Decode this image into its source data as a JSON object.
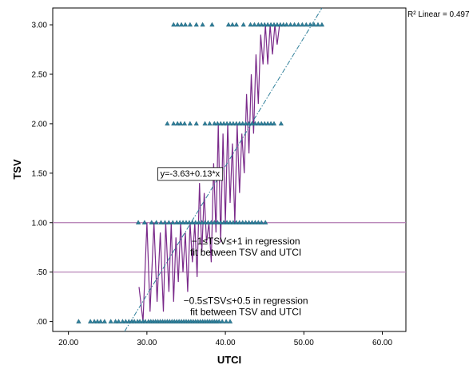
{
  "chart_data": {
    "type": "scatter",
    "xlabel": "UTCI",
    "ylabel": "TSV",
    "xlim": [
      18,
      63
    ],
    "ylim": [
      -0.1,
      3.17
    ],
    "x_ticks": [
      20,
      30,
      40,
      50,
      60
    ],
    "x_tick_labels": [
      "20.00",
      "30.00",
      "40.00",
      "50.00",
      "60.00"
    ],
    "y_ticks": [
      0,
      0.5,
      1,
      1.5,
      2,
      2.5,
      3
    ],
    "y_tick_labels": [
      ".00",
      ".50",
      "1.00",
      "1.50",
      "2.00",
      "2.50",
      "3.00"
    ],
    "r2_label": "R² Linear = 0.497",
    "equation_label": "y=-3.63+0.13*x",
    "equation_anchor": {
      "x": 35.5,
      "y": 1.5
    },
    "fit_line": {
      "intercept": -3.63,
      "slope": 0.13
    },
    "reference_lines": [
      {
        "y": 1.0,
        "color": "#b07ab0"
      },
      {
        "y": 0.5,
        "color": "#b07ab0"
      }
    ],
    "annotations": [
      {
        "text_lines": [
          "−1≤TSV≤+1 in regression",
          "fit between TSV and UTCI"
        ],
        "x": 42.6,
        "y": 0.78
      },
      {
        "text_lines": [
          "−0.5≤TSV≤+0.5 in regression",
          "fit between TSV and UTCI"
        ],
        "x": 42.6,
        "y": 0.18
      }
    ],
    "marker_color": "#2f7f9a",
    "fit_color": "#2f7f9a",
    "profile_color": "#7a2a8a",
    "series": [
      {
        "y": 0,
        "x": [
          21.3,
          22.8,
          23.3,
          23.7,
          24.1,
          24.6,
          25.4,
          26.0,
          26.4,
          26.9,
          27.3,
          27.7,
          28.1,
          28.4,
          28.8,
          29.1,
          29.5,
          29.8,
          30.2,
          30.5,
          30.8,
          31.1,
          31.4,
          31.7,
          32.0,
          32.3,
          32.6,
          32.9,
          33.2,
          33.5,
          33.8,
          34.1,
          34.4,
          34.7,
          35.0,
          35.3,
          35.6,
          35.9,
          36.2,
          36.5,
          36.8,
          37.1,
          37.4,
          37.7,
          38.0,
          38.3,
          38.6,
          38.9,
          39.2,
          39.6,
          40.1,
          40.6
        ]
      },
      {
        "y": 1,
        "x": [
          28.9,
          29.7,
          30.6,
          31.2,
          31.8,
          32.3,
          32.8,
          33.3,
          33.8,
          34.2,
          34.6,
          35.0,
          35.4,
          35.8,
          36.2,
          36.6,
          37.0,
          37.4,
          37.8,
          38.2,
          38.6,
          39.0,
          39.4,
          39.8,
          40.2,
          40.6,
          41.0,
          41.4,
          41.8,
          42.2,
          42.6,
          43.0,
          43.4,
          43.8,
          44.2,
          44.6,
          45.1
        ]
      },
      {
        "y": 2,
        "x": [
          32.6,
          33.4,
          33.9,
          34.3,
          34.8,
          35.5,
          36.3,
          37.4,
          38.0,
          38.6,
          39.0,
          39.4,
          39.8,
          40.2,
          40.6,
          41.0,
          41.4,
          41.8,
          42.2,
          42.6,
          43.0,
          43.4,
          43.8,
          44.2,
          44.6,
          45.0,
          45.4,
          45.8,
          46.2,
          47.1
        ]
      },
      {
        "y": 3,
        "x": [
          33.4,
          33.9,
          34.4,
          34.9,
          35.5,
          36.3,
          37.1,
          38.3,
          40.4,
          40.9,
          41.4,
          42.3,
          43.2,
          43.7,
          44.2,
          44.6,
          45.0,
          45.4,
          45.8,
          46.2,
          46.6,
          47.0,
          47.4,
          47.8,
          48.3,
          48.8,
          49.3,
          49.8,
          50.3,
          50.8,
          51.3,
          51.8,
          52.3
        ]
      }
    ],
    "profile": {
      "x": [
        29.0,
        29.5,
        30.0,
        30.4,
        30.9,
        31.3,
        31.7,
        32.1,
        32.4,
        32.8,
        33.1,
        33.4,
        33.7,
        34.0,
        34.3,
        34.6,
        34.9,
        35.2,
        35.5,
        35.8,
        36.1,
        36.4,
        36.7,
        37.0,
        37.3,
        37.6,
        37.9,
        38.2,
        38.5,
        38.8,
        39.1,
        39.4,
        39.7,
        40.0,
        40.3,
        40.6,
        40.9,
        41.2,
        41.5,
        41.8,
        42.1,
        42.4,
        42.7,
        43.0,
        43.3,
        43.6,
        43.9,
        44.2,
        44.5,
        44.8,
        45.1,
        45.4,
        45.7,
        46.0,
        46.3,
        46.6,
        46.9
      ],
      "y": [
        0.35,
        0.0,
        1.0,
        0.1,
        1.0,
        0.2,
        0.9,
        0.1,
        1.0,
        0.3,
        1.0,
        0.2,
        0.85,
        0.4,
        1.0,
        0.5,
        0.9,
        0.3,
        1.0,
        0.6,
        1.0,
        0.45,
        1.4,
        0.7,
        1.3,
        0.8,
        1.0,
        0.6,
        1.6,
        0.9,
        2.0,
        0.8,
        1.9,
        1.0,
        2.0,
        1.2,
        1.8,
        1.0,
        2.0,
        1.3,
        1.9,
        1.5,
        2.3,
        1.7,
        2.5,
        1.9,
        2.7,
        2.2,
        2.9,
        2.6,
        3.0,
        2.6,
        3.0,
        2.7,
        3.0,
        2.8,
        3.0
      ]
    }
  }
}
